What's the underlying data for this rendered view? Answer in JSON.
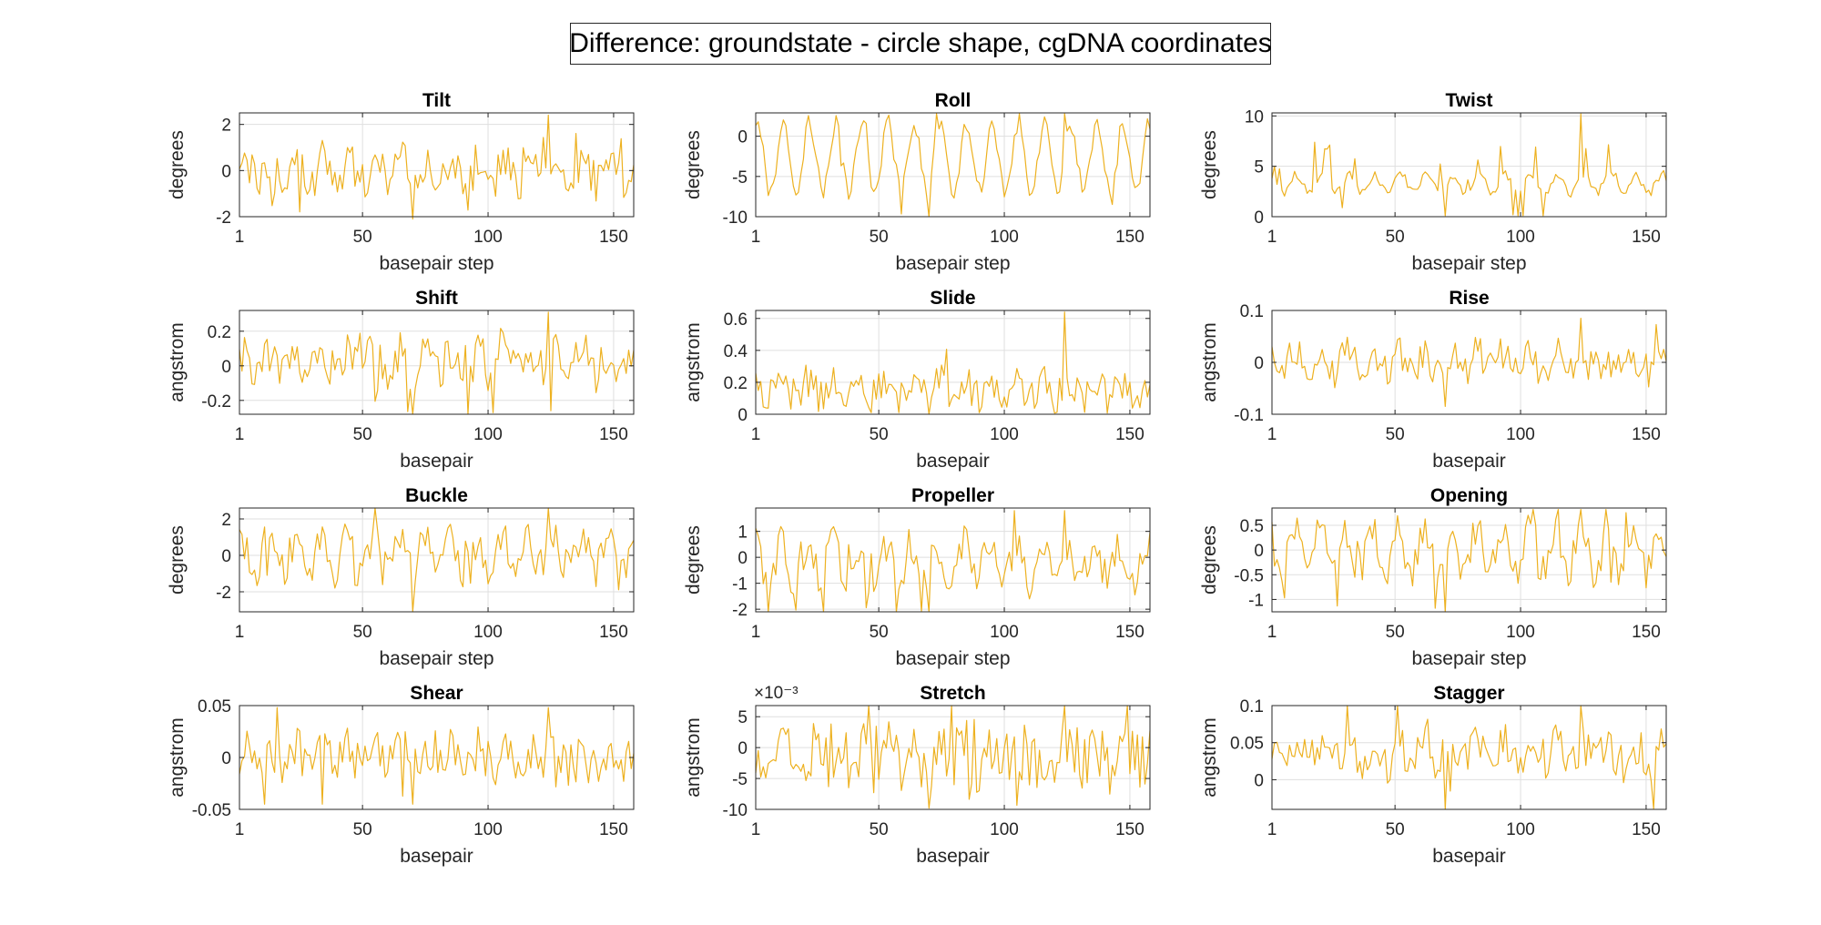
{
  "figure": {
    "title": "Difference: groundstate - circle shape, cgDNA coordinates",
    "line_color": "#edb120"
  },
  "chart_data": [
    {
      "type": "line",
      "title": "Tilt",
      "xlabel": "basepair step",
      "ylabel": "degrees",
      "xlim": [
        1,
        158
      ],
      "ylim": [
        -2,
        2.5
      ],
      "yticks": [
        -2,
        0,
        2
      ],
      "xticks": [
        1,
        50,
        100,
        150
      ],
      "grid": true,
      "n": 158,
      "x": "1..158 (basepair step index)",
      "pattern": {
        "base": 0.0,
        "amp": 0.55,
        "period": 10.4,
        "phase": 0.3,
        "noise": 0.85,
        "min_value": -2.1,
        "max_value": 2.4
      }
    },
    {
      "type": "line",
      "title": "Roll",
      "xlabel": "basepair step",
      "ylabel": "degrees",
      "xlim": [
        1,
        158
      ],
      "ylim": [
        -10,
        2.9
      ],
      "yticks": [
        -10,
        -5,
        0
      ],
      "xticks": [
        1,
        50,
        100,
        150
      ],
      "grid": true,
      "n": 158,
      "x": "1..158 (basepair step index)",
      "pattern": {
        "base": -2.6,
        "amp": 4.2,
        "period": 10.4,
        "phase": 1.2,
        "noise": 1.1,
        "min_value": -10,
        "max_value": 2.8
      }
    },
    {
      "type": "line",
      "title": "Twist",
      "xlabel": "basepair step",
      "ylabel": "degrees",
      "xlim": [
        1,
        158
      ],
      "ylim": [
        0,
        10.3
      ],
      "yticks": [
        0,
        5,
        10
      ],
      "xticks": [
        1,
        50,
        100,
        150
      ],
      "grid": true,
      "n": 158,
      "x": "1..158 (basepair step index)",
      "pattern": {
        "base": 2.8,
        "amp": 0.9,
        "period": 10.4,
        "phase": 2.0,
        "noise": 1.6,
        "min_value": 0.1,
        "max_value": 10.2,
        "spiky": true
      }
    },
    {
      "type": "line",
      "title": "Shift",
      "xlabel": "basepair",
      "ylabel": "angstrom",
      "xlim": [
        1,
        158
      ],
      "ylim": [
        -0.28,
        0.32
      ],
      "yticks": [
        -0.2,
        0,
        0.2
      ],
      "xticks": [
        1,
        50,
        100,
        150
      ],
      "grid": true,
      "n": 158,
      "x": "1..158 (basepair index)",
      "pattern": {
        "base": 0.02,
        "amp": 0.06,
        "period": 10.4,
        "phase": 0.7,
        "noise": 0.12,
        "min_value": -0.28,
        "max_value": 0.31
      }
    },
    {
      "type": "line",
      "title": "Slide",
      "xlabel": "basepair",
      "ylabel": "angstrom",
      "xlim": [
        1,
        158
      ],
      "ylim": [
        0,
        0.65
      ],
      "yticks": [
        0,
        0.2,
        0.4,
        0.6
      ],
      "xticks": [
        1,
        50,
        100,
        150
      ],
      "grid": true,
      "n": 158,
      "x": "1..158 (basepair index)",
      "pattern": {
        "base": 0.16,
        "amp": 0.05,
        "period": 10.4,
        "phase": 1.5,
        "noise": 0.11,
        "min_value": 0.0,
        "max_value": 0.64
      }
    },
    {
      "type": "line",
      "title": "Rise",
      "xlabel": "basepair",
      "ylabel": "angstrom",
      "xlim": [
        1,
        158
      ],
      "ylim": [
        -0.1,
        0.1
      ],
      "yticks": [
        -0.1,
        0,
        0.1
      ],
      "xticks": [
        1,
        50,
        100,
        150
      ],
      "grid": true,
      "n": 158,
      "x": "1..158 (basepair index)",
      "pattern": {
        "base": 0.0,
        "amp": 0.015,
        "period": 10.4,
        "phase": 2.4,
        "noise": 0.035,
        "min_value": -0.085,
        "max_value": 0.085
      }
    },
    {
      "type": "line",
      "title": "Buckle",
      "xlabel": "basepair step",
      "ylabel": "degrees",
      "xlim": [
        1,
        158
      ],
      "ylim": [
        -3.1,
        2.6
      ],
      "yticks": [
        -2,
        0,
        2
      ],
      "xticks": [
        1,
        50,
        100,
        150
      ],
      "grid": true,
      "n": 158,
      "x": "1..158 (basepair step index)",
      "pattern": {
        "base": 0.0,
        "amp": 0.8,
        "period": 10.4,
        "phase": 0.9,
        "noise": 1.1,
        "min_value": -3.1,
        "max_value": 2.6
      }
    },
    {
      "type": "line",
      "title": "Propeller",
      "xlabel": "basepair step",
      "ylabel": "degrees",
      "xlim": [
        1,
        158
      ],
      "ylim": [
        -2.1,
        1.9
      ],
      "yticks": [
        -2,
        -1,
        0,
        1
      ],
      "xticks": [
        1,
        50,
        100,
        150
      ],
      "grid": true,
      "n": 158,
      "x": "1..158 (basepair step index)",
      "pattern": {
        "base": -0.2,
        "amp": 0.7,
        "period": 10.4,
        "phase": 1.8,
        "noise": 0.75,
        "min_value": -2.1,
        "max_value": 1.8
      }
    },
    {
      "type": "line",
      "title": "Opening",
      "xlabel": "basepair step",
      "ylabel": "degrees",
      "xlim": [
        1,
        158
      ],
      "ylim": [
        -1.25,
        0.85
      ],
      "yticks": [
        -1,
        -0.5,
        0,
        0.5
      ],
      "xticks": [
        1,
        50,
        100,
        150
      ],
      "grid": true,
      "n": 158,
      "x": "1..158 (basepair step index)",
      "pattern": {
        "base": 0.0,
        "amp": 0.42,
        "period": 10.4,
        "phase": 2.6,
        "noise": 0.35,
        "min_value": -1.25,
        "max_value": 0.82
      }
    },
    {
      "type": "line",
      "title": "Shear",
      "xlabel": "basepair",
      "ylabel": "angstrom",
      "xlim": [
        1,
        158
      ],
      "ylim": [
        -0.05,
        0.05
      ],
      "yticks": [
        -0.05,
        0,
        0.05
      ],
      "xticks": [
        1,
        50,
        100,
        150
      ],
      "grid": true,
      "n": 158,
      "x": "1..158 (basepair index)",
      "pattern": {
        "base": 0.0,
        "amp": 0.008,
        "period": 10.4,
        "phase": 0.4,
        "noise": 0.022,
        "min_value": -0.045,
        "max_value": 0.048
      }
    },
    {
      "type": "line",
      "title": "Stretch",
      "xlabel": "basepair",
      "ylabel": "angstrom",
      "xlim": [
        1,
        158
      ],
      "ylim": [
        -10,
        6.8
      ],
      "yticks": [
        -10,
        -5,
        0,
        5
      ],
      "ytick_scale": "×10⁻³",
      "xticks": [
        1,
        50,
        100,
        150
      ],
      "grid": true,
      "n": 158,
      "x": "1..158 (basepair index)",
      "pattern": {
        "base": -1.5,
        "amp": 1.2,
        "period": 10.4,
        "phase": 1.1,
        "noise": 5.0,
        "min_value": -9.8,
        "max_value": 6.8
      }
    },
    {
      "type": "line",
      "title": "Stagger",
      "xlabel": "basepair",
      "ylabel": "angstrom",
      "xlim": [
        1,
        158
      ],
      "ylim": [
        -0.04,
        0.1
      ],
      "yticks": [
        0,
        0.05,
        0.1
      ],
      "xticks": [
        1,
        50,
        100,
        150
      ],
      "grid": true,
      "n": 158,
      "x": "1..158 (basepair index)",
      "pattern": {
        "base": 0.035,
        "amp": 0.012,
        "period": 10.4,
        "phase": 2.2,
        "noise": 0.028,
        "min_value": -0.04,
        "max_value": 0.1
      }
    }
  ]
}
